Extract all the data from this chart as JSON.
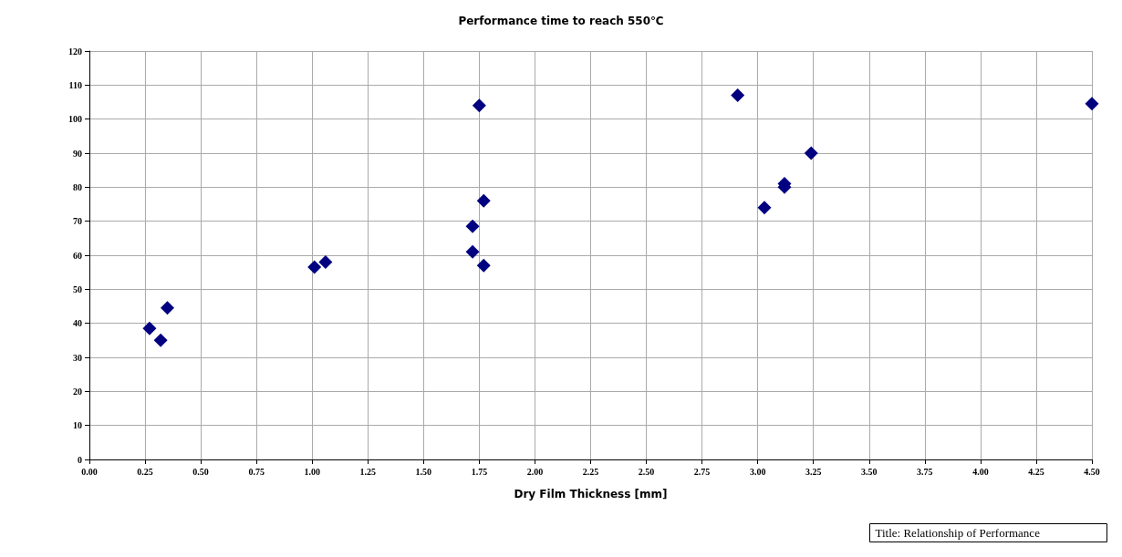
{
  "chart_data": {
    "type": "scatter",
    "title": "Performance time to reach 550℃",
    "xlabel": "Dry Film Thickness [mm]",
    "x": [
      0.27,
      0.32,
      0.35,
      1.01,
      1.06,
      1.72,
      1.72,
      1.77,
      1.77,
      1.75,
      2.91,
      3.03,
      3.12,
      3.12,
      3.24,
      4.5
    ],
    "series": [
      {
        "color": "#000080",
        "values": [
          38.5,
          35,
          44.5,
          56.5,
          58,
          68.5,
          61,
          76,
          57,
          104,
          107,
          74,
          81,
          80,
          90,
          104.5
        ]
      }
    ],
    "xlim": [
      0,
      4.5
    ],
    "xticks": [
      {
        "value": 0,
        "label": "0.00"
      },
      {
        "value": 0.25,
        "label": "0.25"
      },
      {
        "value": 0.5,
        "label": "0.50"
      },
      {
        "value": 0.75,
        "label": "0.75"
      },
      {
        "value": 1,
        "label": "1.00"
      },
      {
        "value": 1.25,
        "label": "1.25"
      },
      {
        "value": 1.5,
        "label": "1.50"
      },
      {
        "value": 1.75,
        "label": "1.75"
      },
      {
        "value": 2,
        "label": "2.00"
      },
      {
        "value": 2.25,
        "label": "2.25"
      },
      {
        "value": 2.5,
        "label": "2.50"
      },
      {
        "value": 2.75,
        "label": "2.75"
      },
      {
        "value": 3,
        "label": "3.00"
      },
      {
        "value": 3.25,
        "label": "3.25"
      },
      {
        "value": 3.5,
        "label": "3.50"
      },
      {
        "value": 3.75,
        "label": "3.75"
      },
      {
        "value": 4,
        "label": "4.00"
      },
      {
        "value": 4.25,
        "label": "4.25"
      },
      {
        "value": 4.5,
        "label": "4.50"
      }
    ],
    "ylim": [
      0,
      120
    ],
    "yticks": [
      0,
      10,
      20,
      30,
      40,
      50,
      60,
      70,
      80,
      90,
      100,
      110,
      120
    ],
    "grid": true,
    "marker": "diamond",
    "annotations": [
      "Title: Relationship of Performance"
    ]
  }
}
